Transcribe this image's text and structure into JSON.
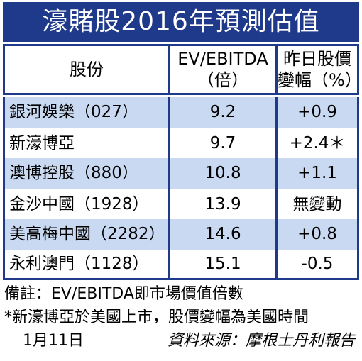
{
  "title": "濠賭股2016年預測估值",
  "header": {
    "col1": "股份",
    "col2_line1": "EV/EBITDA",
    "col2_line2": "（倍）",
    "col3_line1": "昨日股價",
    "col3_line2": "變幅（%）"
  },
  "rows": [
    {
      "name": "銀河娛樂（027）",
      "ev": "9.2",
      "change": "+0.9"
    },
    {
      "name": "新濠博亞",
      "ev": "9.7",
      "change": "+2.4＊"
    },
    {
      "name": "澳博控股（880）",
      "ev": "10.8",
      "change": "+1.1"
    },
    {
      "name": "金沙中國（1928）",
      "ev": "13.9",
      "change": "無變動"
    },
    {
      "name": "美高梅中國（2282）",
      "ev": "14.6",
      "change": "+0.8"
    },
    {
      "name": "永利澳門（1128）",
      "ev": "15.1",
      "change": "-0.5"
    }
  ],
  "notes": {
    "line1": "備註：EV/EBITDA即市場價值倍數",
    "line2": "*新濠博亞於美國上市，股價變幅為美國時間",
    "date": "1月11日",
    "source": "資料來源：摩根士丹利報告"
  },
  "colors": {
    "title_bg": "#1f3a8a",
    "band_blue": "#c9d9f1",
    "border": "#1f3a8a"
  }
}
